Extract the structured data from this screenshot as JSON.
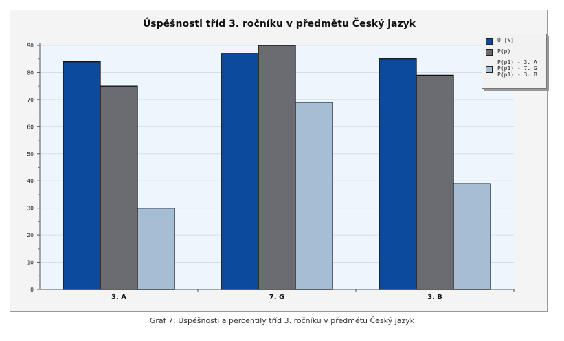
{
  "chart_data": {
    "type": "bar",
    "title": "Úspěšnosti tříd 3. ročníku v předmětu Český jazyk",
    "xlabel": "",
    "ylabel": "",
    "ylim": [
      0,
      90
    ],
    "yticks": [
      0,
      10,
      20,
      30,
      40,
      50,
      60,
      70,
      80,
      90
    ],
    "categories": [
      "3. A",
      "7. G",
      "3. B"
    ],
    "series": [
      {
        "name": "Ú [%]",
        "values": [
          84,
          87,
          85
        ],
        "color": "#0c4a9e"
      },
      {
        "name": "P(p)",
        "values": [
          75,
          90,
          79
        ],
        "color": "#6b6c71"
      },
      {
        "name": "P(p1) - 3. A\nP(p1) - 7. G\nP(p1) - 3. B",
        "values": [
          30,
          69,
          39
        ],
        "color": "#a6bed4"
      }
    ],
    "legend_position": "top-right",
    "grid": true,
    "plot_background": "#eef6fd"
  },
  "legend": {
    "items": [
      {
        "lines": [
          "Ú [%]"
        ],
        "color": "#0c4a9e"
      },
      {
        "lines": [
          "P(p)"
        ],
        "color": "#6b6c71"
      },
      {
        "lines": [
          "P(p1) - 3. A",
          "P(p1) - 7. G",
          "P(p1) - 3. B"
        ],
        "color": "#a6bed4"
      }
    ]
  },
  "caption": "Graf 7: Úspěšnosti a percentily tříd 3. ročníku v předmětu Český jazyk"
}
